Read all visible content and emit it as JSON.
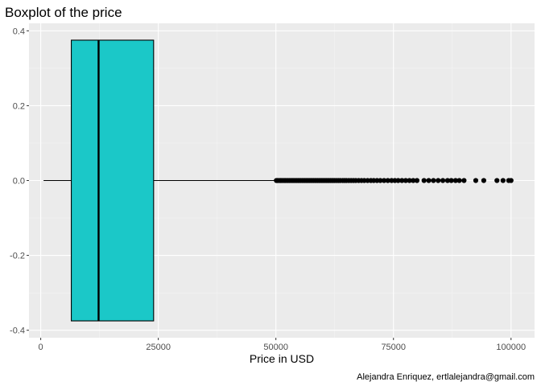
{
  "chart_data": {
    "type": "boxplot",
    "orientation": "horizontal",
    "title": "Boxplot of the price",
    "xlabel": "Price in USD",
    "ylabel": "",
    "caption": "Alejandra Enriquez, ertlalejandra@gmail.com",
    "xlim": [
      -2500,
      105000
    ],
    "ylim": [
      -0.42,
      0.42
    ],
    "x_ticks": [
      0,
      25000,
      50000,
      75000,
      100000
    ],
    "x_tick_labels": [
      "0",
      "25000",
      "50000",
      "75000",
      "100000"
    ],
    "y_ticks": [
      -0.4,
      -0.2,
      0.0,
      0.2,
      0.4
    ],
    "y_tick_labels": [
      "-0.4",
      "-0.2",
      "0.0",
      "0.2",
      "0.4"
    ],
    "grid": true,
    "box": {
      "min": 600,
      "q1": 6500,
      "median": 12300,
      "q3": 24000,
      "whisker_high": 50000,
      "y_low": -0.375,
      "y_high": 0.375,
      "fill": "#1bc8c8"
    },
    "outliers": [
      50100,
      50300,
      50500,
      50800,
      51000,
      51200,
      51500,
      51800,
      52000,
      52300,
      52600,
      52900,
      53200,
      53500,
      53800,
      54100,
      54400,
      54700,
      55000,
      55300,
      55600,
      55900,
      56200,
      56500,
      56800,
      57100,
      57400,
      57700,
      58000,
      58300,
      58600,
      58900,
      59200,
      59500,
      59800,
      60100,
      60400,
      60700,
      61000,
      61300,
      61600,
      61900,
      62200,
      62500,
      62900,
      63300,
      63700,
      64200,
      64600,
      65000,
      65500,
      66000,
      66500,
      67000,
      67600,
      68200,
      68800,
      69500,
      70200,
      70800,
      71500,
      72200,
      73000,
      73800,
      74600,
      75300,
      76000,
      76800,
      77600,
      78400,
      79200,
      80000,
      81500,
      82500,
      83500,
      84500,
      85500,
      86500,
      87300,
      88200,
      89000,
      90000,
      92500,
      94200,
      97000,
      98300,
      99500,
      100000
    ]
  },
  "colors": {
    "panel_background": "#ebebeb",
    "grid_major": "#ffffff",
    "grid_minor": "#f4f4f4",
    "box_fill": "#1bc8c8",
    "stroke": "#000000"
  }
}
